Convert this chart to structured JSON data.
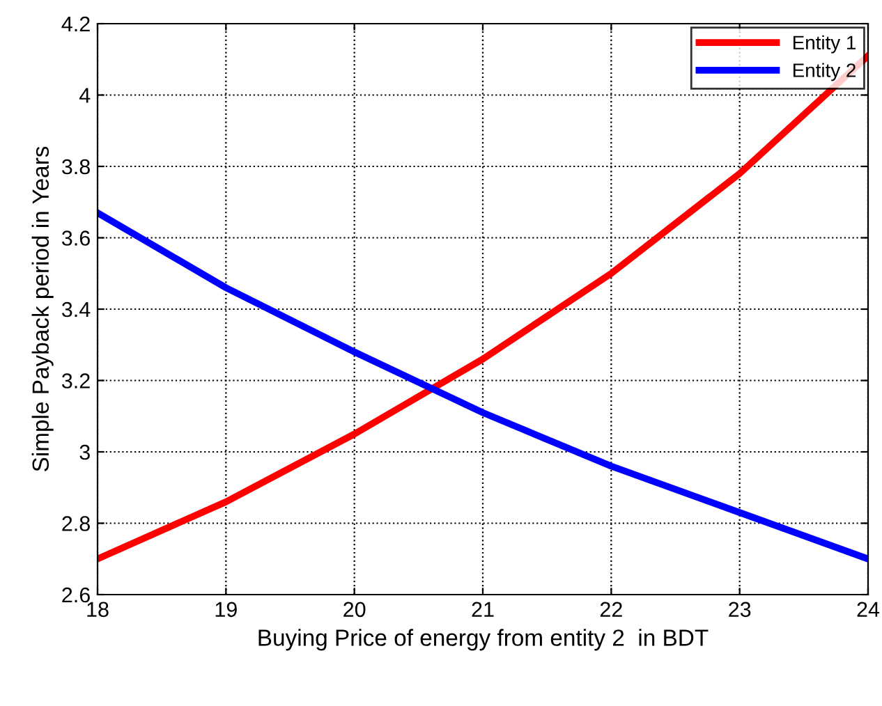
{
  "chart_data": {
    "type": "line",
    "xlabel": "Buying Price of energy from entity 2  in BDT",
    "ylabel": "Simple Payback period in Years",
    "x": [
      18,
      19,
      20,
      21,
      22,
      23,
      24
    ],
    "series": [
      {
        "name": "Entity 1",
        "color": "#ff0000",
        "values": [
          2.7,
          2.86,
          3.05,
          3.26,
          3.5,
          3.78,
          4.11
        ]
      },
      {
        "name": "Entity 2",
        "color": "#0000ff",
        "values": [
          3.67,
          3.46,
          3.28,
          3.11,
          2.96,
          2.83,
          2.7
        ]
      }
    ],
    "xlim": [
      18,
      24
    ],
    "xticks": [
      18,
      19,
      20,
      21,
      22,
      23,
      24
    ],
    "ylim": [
      2.6,
      4.2
    ],
    "yticks": [
      2.6,
      2.8,
      3,
      3.2,
      3.4,
      3.6,
      3.8,
      4,
      4.2
    ],
    "grid": true,
    "legend": "top right",
    "marker": "none",
    "line_style": "solid"
  }
}
